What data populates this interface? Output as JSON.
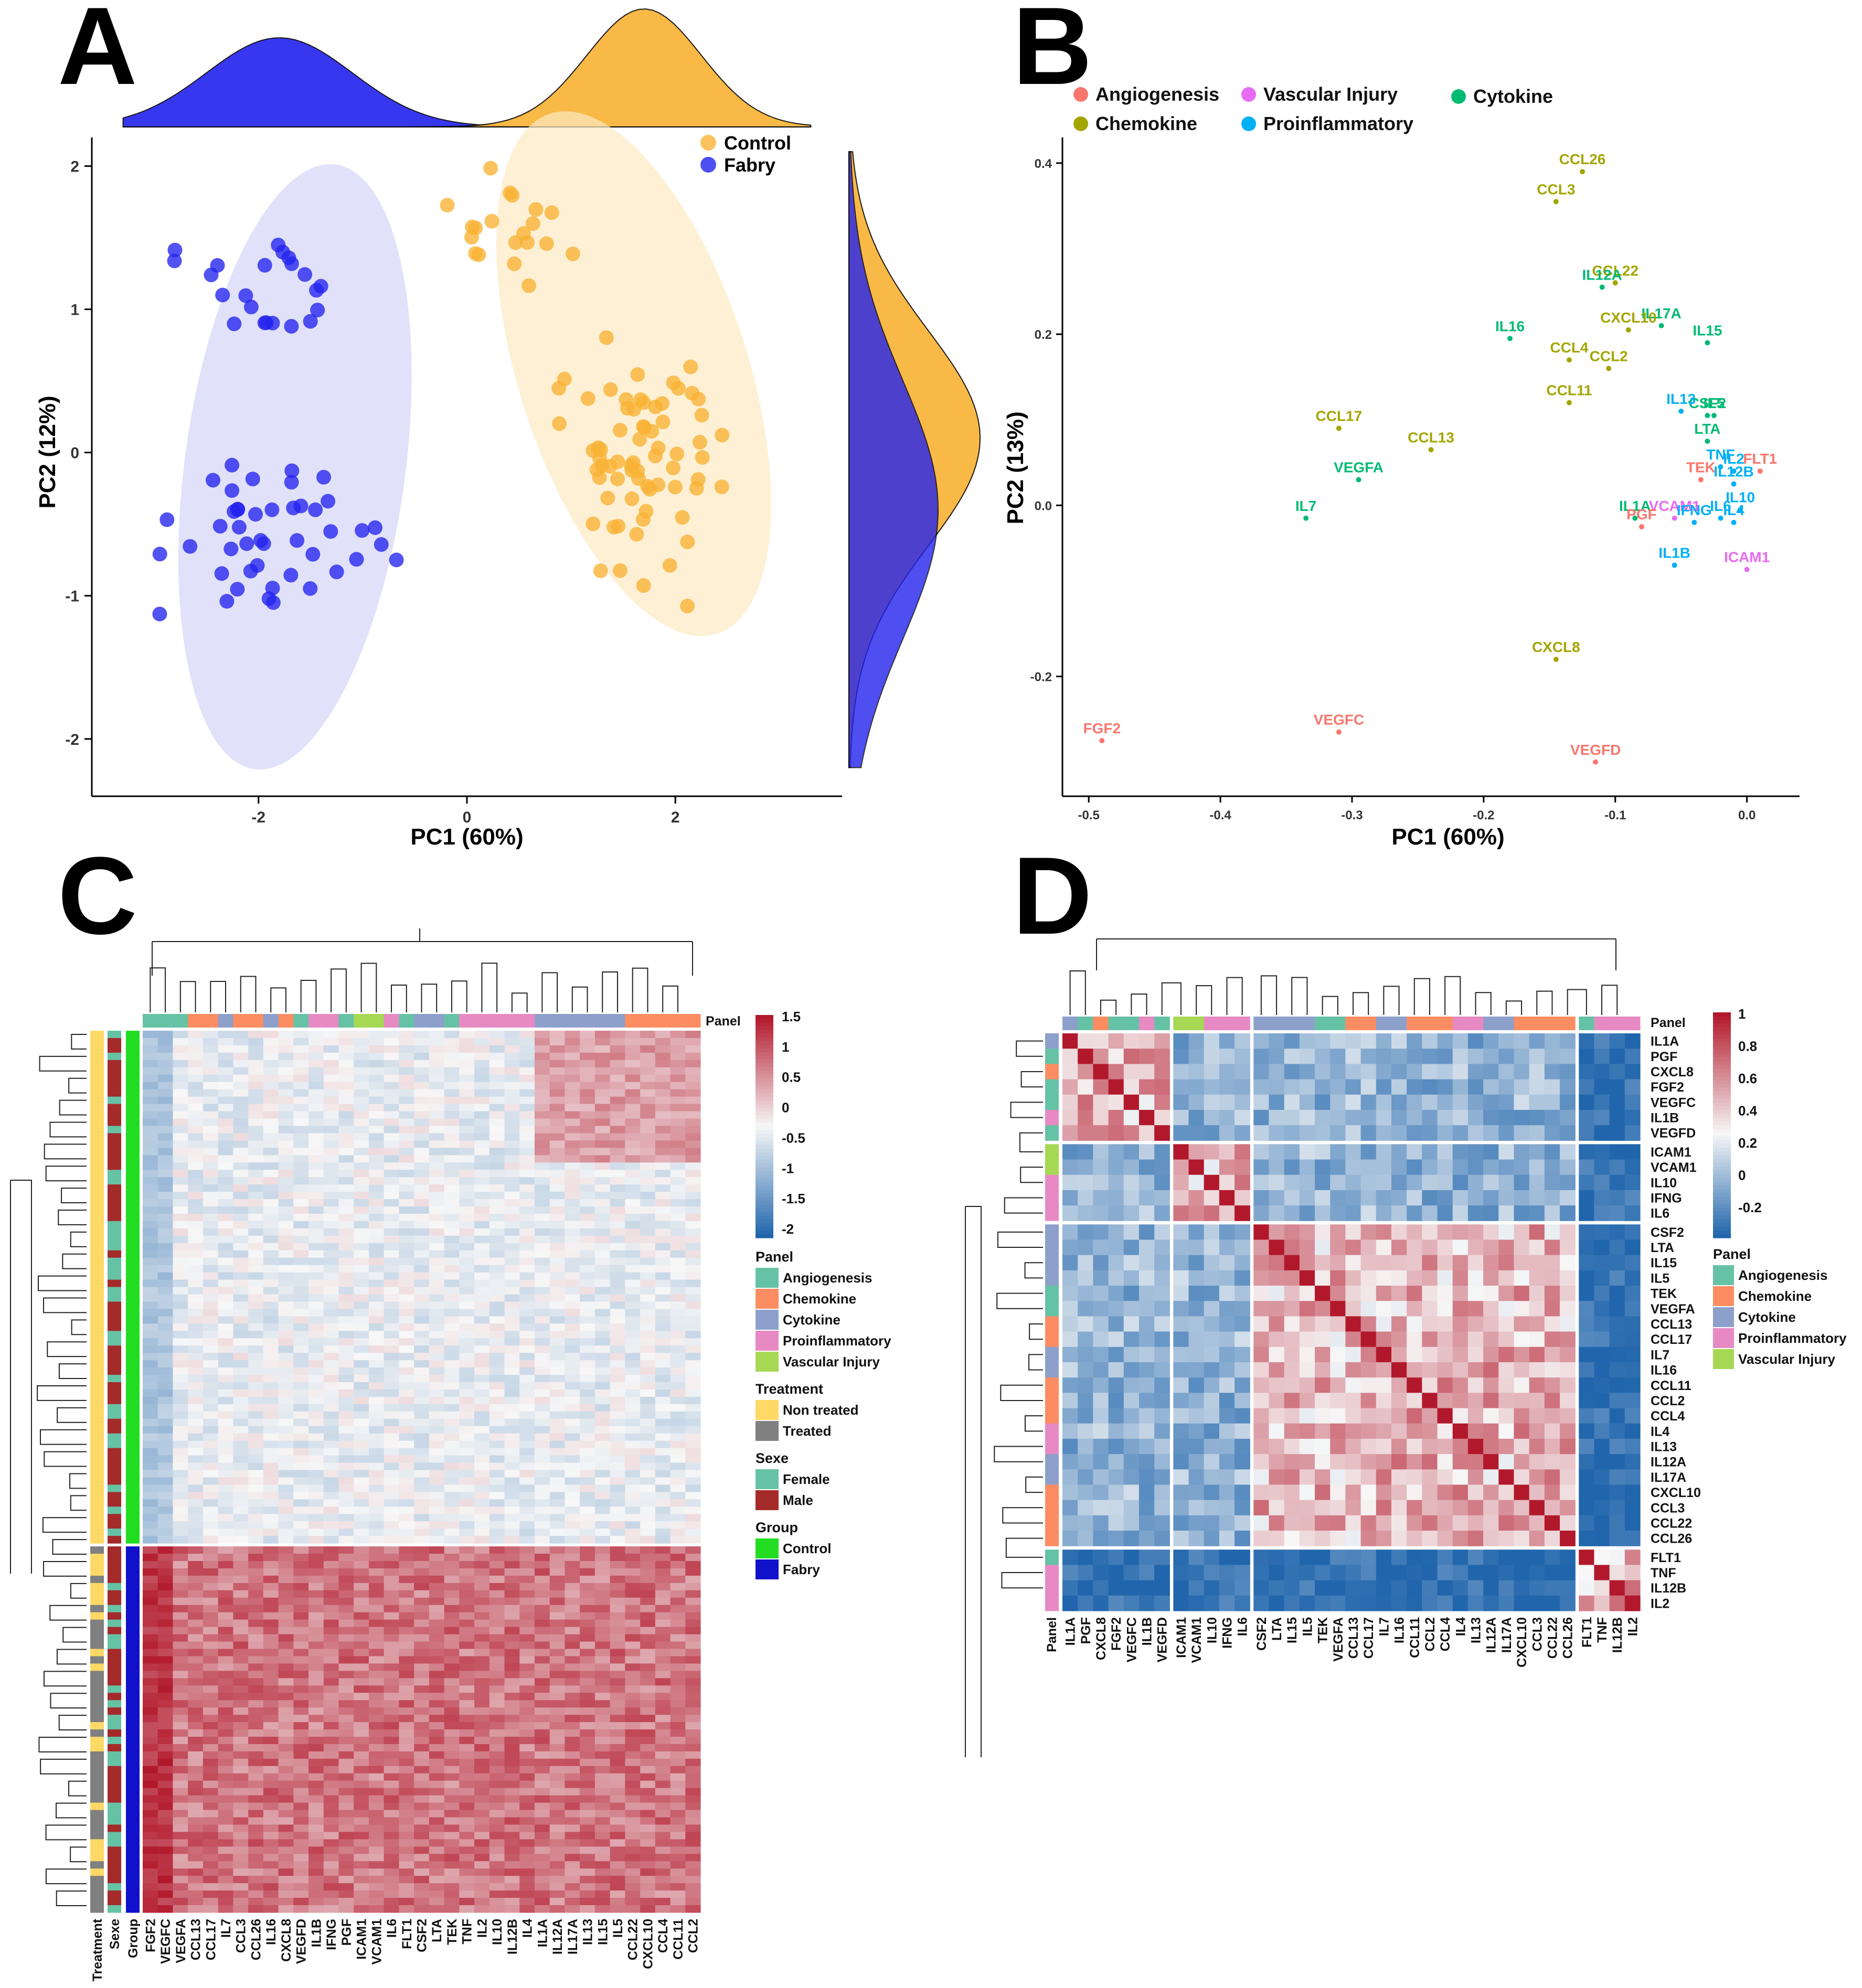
{
  "chart_data": [
    {
      "panel": "A",
      "type": "scatter",
      "xlabel": "PC1 (60%)",
      "ylabel": "PC2 (12%)",
      "xlim": [
        -3.6,
        3.6
      ],
      "ylim": [
        -2.4,
        2.2
      ],
      "xticks": [
        "-2",
        "0",
        "2"
      ],
      "yticks": [
        "2",
        "1",
        "0",
        "-1",
        "-2"
      ],
      "legend_placement": "top-right",
      "series": [
        {
          "name": "Control",
          "color": "#F9B233"
        },
        {
          "name": "Fabry",
          "color": "#2222EE"
        }
      ],
      "marginal_densities": true,
      "ellipses": true
    },
    {
      "panel": "B",
      "type": "scatter",
      "xlabel": "PC1 (60%)",
      "ylabel": "PC2 (13%)",
      "xlim": [
        -0.52,
        0.04
      ],
      "ylim": [
        -0.34,
        0.43
      ],
      "xticks": [
        "-0.5",
        "-0.4",
        "-0.3",
        "-0.2",
        "-0.1",
        "0.0"
      ],
      "yticks": [
        "0.4",
        "0.2",
        "0.0",
        "-0.2"
      ],
      "legend_placement": "top",
      "legend": [
        {
          "name": "Angiogenesis",
          "color": "#F8766D"
        },
        {
          "name": "Vascular Injury",
          "color": "#E76BF3"
        },
        {
          "name": "Cytokine",
          "color": "#00BA74"
        },
        {
          "name": "Chemokine",
          "color": "#A3A500"
        },
        {
          "name": "Proinflammatory",
          "color": "#00B0F6"
        }
      ],
      "points": [
        {
          "label": "CCL26",
          "group": "Chemokine",
          "x": -0.125,
          "y": 0.39
        },
        {
          "label": "CCL3",
          "group": "Chemokine",
          "x": -0.145,
          "y": 0.355
        },
        {
          "label": "CCL22",
          "group": "Chemokine",
          "x": -0.1,
          "y": 0.26
        },
        {
          "label": "IL12A",
          "group": "Cytokine",
          "x": -0.11,
          "y": 0.255
        },
        {
          "label": "IL17A",
          "group": "Cytokine",
          "x": -0.065,
          "y": 0.21
        },
        {
          "label": "IL16",
          "group": "Cytokine",
          "x": -0.18,
          "y": 0.195
        },
        {
          "label": "CXCL10",
          "group": "Chemokine",
          "x": -0.09,
          "y": 0.205
        },
        {
          "label": "IL15",
          "group": "Cytokine",
          "x": -0.03,
          "y": 0.19
        },
        {
          "label": "CCL4",
          "group": "Chemokine",
          "x": -0.135,
          "y": 0.17
        },
        {
          "label": "CCL2",
          "group": "Chemokine",
          "x": -0.105,
          "y": 0.16
        },
        {
          "label": "IL5",
          "group": "Cytokine",
          "x": -0.025,
          "y": 0.105
        },
        {
          "label": "CSF2",
          "group": "Cytokine",
          "x": -0.03,
          "y": 0.105
        },
        {
          "label": "CCL11",
          "group": "Chemokine",
          "x": -0.135,
          "y": 0.12
        },
        {
          "label": "IL13",
          "group": "Proinflammatory",
          "x": -0.05,
          "y": 0.11
        },
        {
          "label": "FLT1",
          "group": "Angiogenesis",
          "x": 0.01,
          "y": 0.04
        },
        {
          "label": "LTA",
          "group": "Cytokine",
          "x": -0.03,
          "y": 0.075
        },
        {
          "label": "TNF",
          "group": "Proinflammatory",
          "x": -0.02,
          "y": 0.045
        },
        {
          "label": "IL2",
          "group": "Proinflammatory",
          "x": -0.01,
          "y": 0.04
        },
        {
          "label": "CCL17",
          "group": "Chemokine",
          "x": -0.31,
          "y": 0.09
        },
        {
          "label": "CCL13",
          "group": "Chemokine",
          "x": -0.24,
          "y": 0.065
        },
        {
          "label": "TEK",
          "group": "Angiogenesis",
          "x": -0.035,
          "y": 0.03
        },
        {
          "label": "IL12B",
          "group": "Proinflammatory",
          "x": -0.01,
          "y": 0.025
        },
        {
          "label": "VEGFA",
          "group": "Cytokine",
          "x": -0.295,
          "y": 0.03
        },
        {
          "label": "IL1A",
          "group": "Cytokine",
          "x": -0.085,
          "y": -0.015
        },
        {
          "label": "VCAM1",
          "group": "Vascular Injury",
          "x": -0.055,
          "y": -0.015
        },
        {
          "label": "IL10",
          "group": "Proinflammatory",
          "x": -0.005,
          "y": -0.005
        },
        {
          "label": "IL7",
          "group": "Cytokine",
          "x": -0.335,
          "y": -0.015
        },
        {
          "label": "PGF",
          "group": "Angiogenesis",
          "x": -0.08,
          "y": -0.025
        },
        {
          "label": "IFNG",
          "group": "Proinflammatory",
          "x": -0.04,
          "y": -0.02
        },
        {
          "label": "IL6",
          "group": "Proinflammatory",
          "x": -0.02,
          "y": -0.015
        },
        {
          "label": "IL4",
          "group": "Proinflammatory",
          "x": -0.01,
          "y": -0.02
        },
        {
          "label": "IL1B",
          "group": "Proinflammatory",
          "x": -0.055,
          "y": -0.07
        },
        {
          "label": "ICAM1",
          "group": "Vascular Injury",
          "x": 0.0,
          "y": -0.075
        },
        {
          "label": "CXCL8",
          "group": "Chemokine",
          "x": -0.145,
          "y": -0.18
        },
        {
          "label": "FGF2",
          "group": "Angiogenesis",
          "x": -0.49,
          "y": -0.275
        },
        {
          "label": "VEGFC",
          "group": "Angiogenesis",
          "x": -0.31,
          "y": -0.265
        },
        {
          "label": "VEGFD",
          "group": "Angiogenesis",
          "x": -0.115,
          "y": -0.3
        }
      ]
    },
    {
      "panel": "C",
      "type": "heatmap",
      "columns": [
        "FGF2",
        "VEGFC",
        "VEGFA",
        "CCL13",
        "CCL17",
        "IL7",
        "CCL3",
        "CCL26",
        "IL16",
        "CXCL8",
        "VEGFD",
        "IL1B",
        "IFNG",
        "PGF",
        "ICAM1",
        "VCAM1",
        "IL6",
        "FLT1",
        "CSF2",
        "LTA",
        "TEK",
        "TNF",
        "IL2",
        "IL10",
        "IL12B",
        "IL4",
        "IL1A",
        "IL12A",
        "IL17A",
        "IL13",
        "IL15",
        "IL5",
        "CCL22",
        "CXCL10",
        "CCL4",
        "CCL11",
        "CCL2"
      ],
      "row_annotations": [
        "Treatment",
        "Sexe",
        "Group"
      ],
      "top_annotation": "Panel",
      "colorbar_ticks": [
        "1.5",
        "1",
        "0.5",
        "0",
        "-0.5",
        "-1",
        "-1.5",
        "-2"
      ],
      "legends": [
        {
          "title": "Panel",
          "items": [
            {
              "name": "Angiogenesis",
              "color": "#66C2A5"
            },
            {
              "name": "Chemokine",
              "color": "#FC8D62"
            },
            {
              "name": "Cytokine",
              "color": "#8DA0CB"
            },
            {
              "name": "Proinflammatory",
              "color": "#E78AC3"
            },
            {
              "name": "Vascular Injury",
              "color": "#A6D854"
            }
          ]
        },
        {
          "title": "Treatment",
          "items": [
            {
              "name": "Non treated",
              "color": "#FFD966"
            },
            {
              "name": "Treated",
              "color": "#808080"
            }
          ]
        },
        {
          "title": "Sexe",
          "items": [
            {
              "name": "Female",
              "color": "#66C2A5"
            },
            {
              "name": "Male",
              "color": "#A52A2A"
            }
          ]
        },
        {
          "title": "Group",
          "items": [
            {
              "name": "Control",
              "color": "#22DD22"
            },
            {
              "name": "Fabry",
              "color": "#1111CC"
            }
          ]
        }
      ]
    },
    {
      "panel": "D",
      "type": "heatmap",
      "order": [
        "IL1A",
        "PGF",
        "CXCL8",
        "FGF2",
        "VEGFC",
        "IL1B",
        "VEGFD",
        "ICAM1",
        "VCAM1",
        "IL10",
        "IFNG",
        "IL6",
        "CSF2",
        "LTA",
        "IL15",
        "IL5",
        "TEK",
        "VEGFA",
        "CCL13",
        "CCL17",
        "IL7",
        "IL16",
        "CCL11",
        "CCL2",
        "CCL4",
        "IL4",
        "IL13",
        "IL12A",
        "IL17A",
        "CXCL10",
        "CCL3",
        "CCL22",
        "CCL26",
        "FLT1",
        "TNF",
        "IL12B",
        "IL2"
      ],
      "groups": [
        7,
        5,
        21,
        4
      ],
      "top_annotation": "Panel",
      "left_annotation": "Panel",
      "colorbar_ticks": [
        "1",
        "0.8",
        "0.6",
        "0.4",
        "0.2",
        "0",
        "-0.2"
      ],
      "legends": [
        {
          "title": "Panel",
          "items": [
            {
              "name": "Angiogenesis",
              "color": "#66C2A5"
            },
            {
              "name": "Chemokine",
              "color": "#FC8D62"
            },
            {
              "name": "Cytokine",
              "color": "#8DA0CB"
            },
            {
              "name": "Proinflammatory",
              "color": "#E78AC3"
            },
            {
              "name": "Vascular Injury",
              "color": "#A6D854"
            }
          ]
        }
      ]
    }
  ],
  "panel_letters": [
    "A",
    "B",
    "C",
    "D"
  ],
  "colors": {
    "control": "#F9B233",
    "fabry": "#2222EE",
    "heat_high": "#B2182B",
    "heat_mid": "#F7F7F7",
    "heat_low": "#2166AC"
  }
}
